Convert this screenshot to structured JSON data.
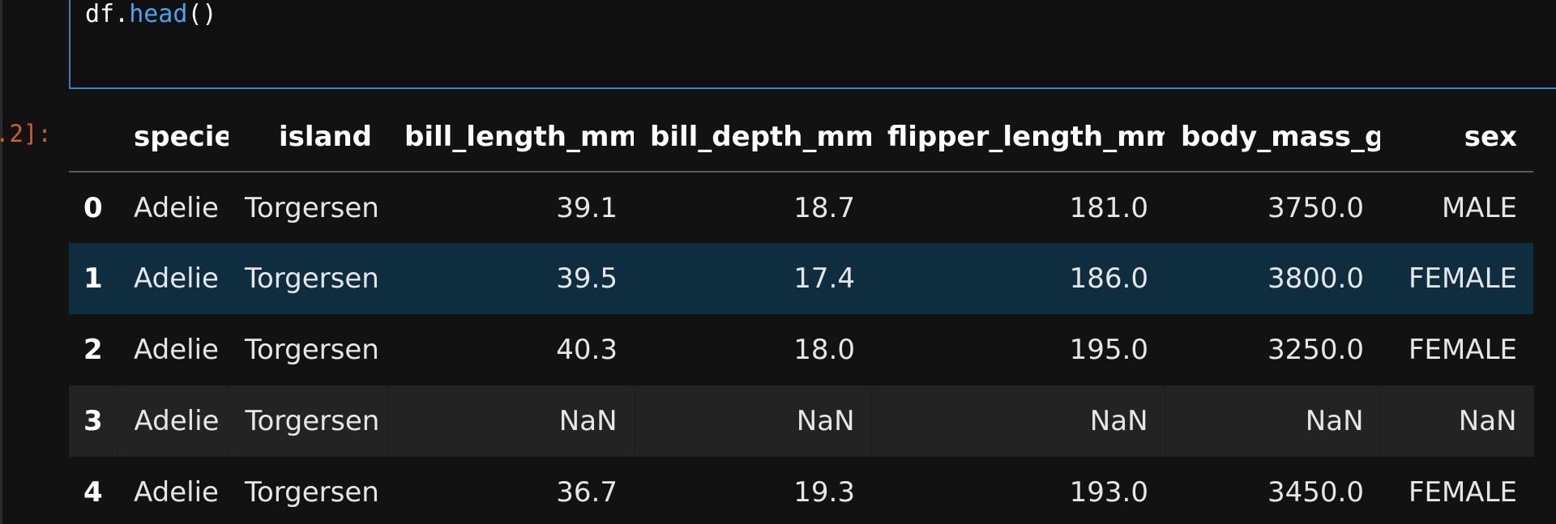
{
  "cell": {
    "code_object": "df",
    "code_dot": ".",
    "code_method": "head",
    "code_parens": "()",
    "execution_count_fragment": ".2]:"
  },
  "dataframe": {
    "columns": [
      "species",
      "island",
      "bill_length_mm",
      "bill_depth_mm",
      "flipper_length_mm",
      "body_mass_g",
      "sex"
    ],
    "rows": [
      {
        "index": "0",
        "cells": [
          "Adelie",
          "Torgersen",
          "39.1",
          "18.7",
          "181.0",
          "3750.0",
          "MALE"
        ]
      },
      {
        "index": "1",
        "cells": [
          "Adelie",
          "Torgersen",
          "39.5",
          "17.4",
          "186.0",
          "3800.0",
          "FEMALE"
        ]
      },
      {
        "index": "2",
        "cells": [
          "Adelie",
          "Torgersen",
          "40.3",
          "18.0",
          "195.0",
          "3250.0",
          "FEMALE"
        ]
      },
      {
        "index": "3",
        "cells": [
          "Adelie",
          "Torgersen",
          "NaN",
          "NaN",
          "NaN",
          "NaN",
          "NaN"
        ]
      },
      {
        "index": "4",
        "cells": [
          "Adelie",
          "Torgersen",
          "36.7",
          "19.3",
          "193.0",
          "3450.0",
          "FEMALE"
        ]
      }
    ]
  },
  "colors": {
    "background": "#121212",
    "cell_focus_border": "#3e7fc4",
    "method_highlight": "#4aa3f0",
    "execution_count": "#c9612d",
    "hover_row": "#0e2e3f",
    "alt_row": "#232323"
  }
}
